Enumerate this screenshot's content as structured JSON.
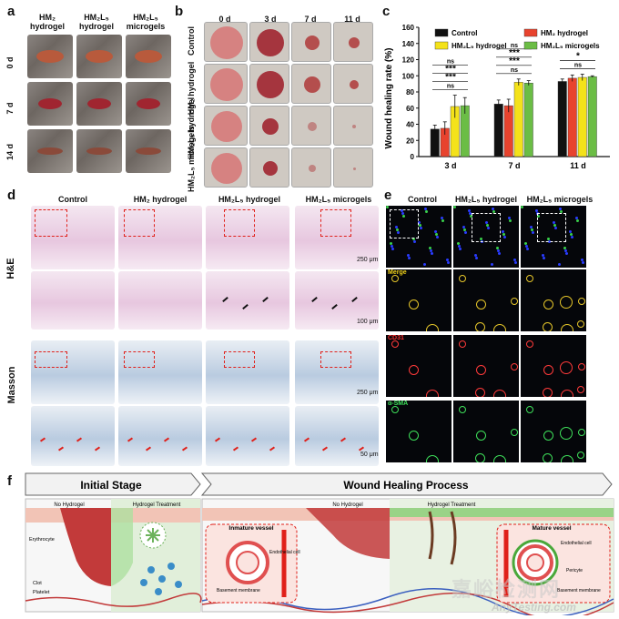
{
  "panels": {
    "a": "a",
    "b": "b",
    "c": "c",
    "d": "d",
    "e": "e",
    "f": "f"
  },
  "panel_a": {
    "columns": [
      "HM₂ hydrogel",
      "HM₂L₅ hydrogel",
      "HM₂L₅ microgels"
    ],
    "rows": [
      "0 d",
      "7 d",
      "14 d"
    ]
  },
  "panel_b": {
    "columns": [
      "0 d",
      "3 d",
      "7 d",
      "11 d"
    ],
    "rows": [
      "Control",
      "HM₂ hydrogel",
      "HM₂L₅ hydrogel",
      "HM₂L₅ microgels"
    ]
  },
  "chart_data": {
    "type": "bar",
    "ylabel": "Wound healing rate (%)",
    "ylim": [
      0,
      160
    ],
    "yticks": [
      0,
      20,
      40,
      60,
      80,
      100,
      120,
      140,
      160
    ],
    "categories": [
      "3 d",
      "7 d",
      "11 d"
    ],
    "legend_placement": "top",
    "series": [
      {
        "name": "Control",
        "color": "#111111",
        "values": [
          34,
          65,
          93
        ],
        "errors": [
          5,
          5,
          3
        ]
      },
      {
        "name": "HM₂ hydrogel",
        "color": "#e8432e",
        "values": [
          35,
          63,
          97
        ],
        "errors": [
          8,
          8,
          4
        ]
      },
      {
        "name": "HM₂L₅ hydrogel",
        "color": "#f4e21a",
        "values": [
          62,
          92,
          98
        ],
        "errors": [
          14,
          4,
          4
        ]
      },
      {
        "name": "HM₂L₅ microgels",
        "color": "#6bbd45",
        "values": [
          63,
          91,
          99
        ],
        "errors": [
          10,
          3,
          1
        ]
      }
    ],
    "significance": [
      {
        "group": "3 d",
        "labels": [
          "ns",
          "***",
          "***",
          "ns"
        ]
      },
      {
        "group": "7 d",
        "labels": [
          "ns",
          "***",
          "***",
          "ns"
        ]
      },
      {
        "group": "11 d",
        "labels": [
          "ns",
          "*"
        ]
      }
    ]
  },
  "panel_d": {
    "columns": [
      "Control",
      "HM₂ hydrogel",
      "HM₂L₅ hydrogel",
      "HM₂L₅ microgels"
    ],
    "rows": [
      "H&E",
      "Masson"
    ],
    "scales": [
      "250 μm",
      "100 μm",
      "250 μm",
      "50 μm"
    ]
  },
  "panel_e": {
    "columns": [
      "Control",
      "HM₂L₅ hydrogel",
      "HM₂L₅ microgels"
    ],
    "channels": [
      "Merge",
      "CD31",
      "α-SMA"
    ],
    "scales": [
      "50μm",
      "50μm"
    ]
  },
  "panel_f": {
    "stage1_title": "Initial Stage",
    "stage2_title": "Wound Healing Process",
    "no_hydrogel": "No Hydrogel",
    "hydrogel_treatment": "Hydrogel Treatment",
    "erythrocyte": "Erythrocyte",
    "clot": "Clot",
    "platelet": "Platelet",
    "inmature_vessel": "Inmature vessel",
    "mature_vessel": "Mature vessel",
    "endothelial_cell": "Endothelial cell",
    "basement_membrane": "Basement membrane",
    "pericyte": "Pericyte"
  },
  "watermark": {
    "cn": "嘉峪检测网",
    "en": "AnyTesting.com"
  },
  "colors": {
    "red": "#e0201a",
    "he": "#e7c7df",
    "masson": "#b9cbe0",
    "stage_bg": "#e8f1e2"
  }
}
